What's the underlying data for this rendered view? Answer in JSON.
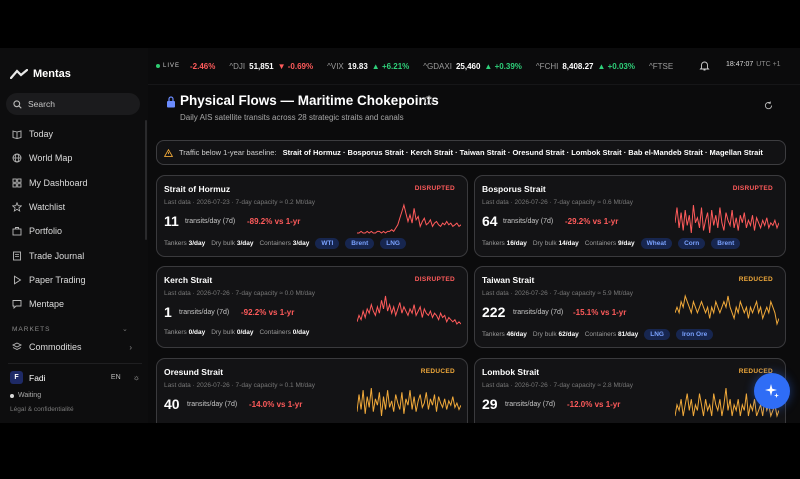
{
  "app": {
    "name": "Mentas"
  },
  "sidebar": {
    "search_label": "Search",
    "nav": [
      {
        "label": "Today",
        "icon": "book-icon"
      },
      {
        "label": "World Map",
        "icon": "globe-icon"
      },
      {
        "label": "My Dashboard",
        "icon": "grid-icon"
      },
      {
        "label": "Watchlist",
        "icon": "star-icon"
      },
      {
        "label": "Portfolio",
        "icon": "briefcase-icon"
      },
      {
        "label": "Trade Journal",
        "icon": "journal-icon"
      },
      {
        "label": "Paper Trading",
        "icon": "play-icon"
      },
      {
        "label": "Mentape",
        "icon": "chat-icon"
      }
    ],
    "section_label": "MARKETS",
    "commodities_label": "Commodities",
    "user": {
      "initial": "F",
      "name": "Fadi",
      "lang": "EN"
    },
    "status": "Waiting",
    "legal": "Légal & confidentialité"
  },
  "ticker": {
    "live_label": "LIVE",
    "first_change": "-2.46%",
    "items": [
      {
        "symbol": "^DJI",
        "value": "51,851",
        "change": "-0.69%",
        "dir": "down"
      },
      {
        "symbol": "^VIX",
        "value": "19.83",
        "change": "+6.21%",
        "dir": "up"
      },
      {
        "symbol": "^GDAXI",
        "value": "25,460",
        "change": "+0.39%",
        "dir": "up"
      },
      {
        "symbol": "^FCHI",
        "value": "8,408.27",
        "change": "+0.03%",
        "dir": "up"
      },
      {
        "symbol": "^FTSE",
        "value": "",
        "change": "",
        "dir": ""
      }
    ],
    "time": "18:47:07",
    "timezone": "UTC +1"
  },
  "header": {
    "title": "Physical Flows — Maritime Chokepoints",
    "subtitle": "Daily AIS satellite transits across 28 strategic straits and canals"
  },
  "alert": {
    "lead": "Traffic below 1-year baseline:",
    "list": "Strait of Hormuz · Bosporus Strait · Kerch Strait · Taiwan Strait · Oresund Strait · Lombok Strait · Bab el-Mandeb Strait · Magellan Strait"
  },
  "labels": {
    "transits_unit": "transits/day (7d)",
    "tankers": "Tankers",
    "dry_bulk": "Dry bulk",
    "containers": "Containers"
  },
  "colors": {
    "disrupted": "#ff5b5b",
    "reduced": "#f0a93a",
    "accent": "#2f6df6"
  },
  "cards": [
    {
      "name": "Strait of Hormuz",
      "status": "DISRUPTED",
      "status_type": "disrupted",
      "meta": "Last data · 2026-07-23 · 7-day capacity ≈ 0.2 Mt/day",
      "transits": "11",
      "delta": "-89.2% vs 1-yr",
      "tankers": "3/day",
      "dry_bulk": "3/day",
      "containers": "3/day",
      "tags": [
        "WTI",
        "Brent",
        "LNG"
      ],
      "spark": [
        5,
        5,
        6,
        5,
        5,
        6,
        5,
        6,
        5,
        5,
        6,
        6,
        5,
        6,
        5,
        6,
        6,
        7,
        6,
        8,
        10,
        14,
        18,
        22,
        17,
        12,
        16,
        11,
        20,
        13,
        15,
        9,
        12,
        14,
        10,
        11,
        13,
        9,
        11,
        12,
        10,
        9,
        11,
        10,
        12,
        10,
        11,
        9,
        10,
        11,
        9,
        10
      ]
    },
    {
      "name": "Bosporus Strait",
      "status": "DISRUPTED",
      "status_type": "disrupted",
      "meta": "Last data · 2026-07-26 · 7-day capacity ≈ 0.6 Mt/day",
      "transits": "64",
      "delta": "-29.2% vs 1-yr",
      "tankers": "16/day",
      "dry_bulk": "14/day",
      "containers": "9/day",
      "tags": [
        "Wheat",
        "Corn",
        "Brent"
      ],
      "spark": [
        12,
        18,
        10,
        16,
        9,
        17,
        11,
        15,
        8,
        19,
        12,
        14,
        10,
        18,
        9,
        13,
        16,
        8,
        17,
        11,
        15,
        10,
        18,
        12,
        9,
        16,
        13,
        11,
        17,
        10,
        14,
        9,
        15,
        12,
        16,
        10,
        13,
        11,
        15,
        9,
        14,
        12,
        10,
        13,
        11,
        14,
        10,
        12,
        11,
        13,
        10,
        12
      ]
    },
    {
      "name": "Kerch Strait",
      "status": "DISRUPTED",
      "status_type": "disrupted",
      "meta": "Last data · 2026-07-26 · 7-day capacity ≈ 0.0 Mt/day",
      "transits": "1",
      "delta": "-92.2% vs 1-yr",
      "tankers": "0/day",
      "dry_bulk": "0/day",
      "containers": "0/day",
      "tags": [],
      "spark": [
        6,
        9,
        7,
        11,
        8,
        12,
        10,
        14,
        11,
        9,
        13,
        10,
        16,
        12,
        18,
        11,
        14,
        10,
        13,
        9,
        12,
        15,
        10,
        13,
        11,
        9,
        12,
        10,
        14,
        9,
        11,
        13,
        8,
        12,
        10,
        9,
        11,
        8,
        10,
        9,
        7,
        10,
        8,
        9,
        6,
        8,
        7,
        6,
        7,
        5,
        6,
        5
      ]
    },
    {
      "name": "Taiwan Strait",
      "status": "REDUCED",
      "status_type": "reduced",
      "meta": "Last data · 2026-07-26 · 7-day capacity ≈ 5.9 Mt/day",
      "transits": "222",
      "delta": "-15.1% vs 1-yr",
      "tankers": "46/day",
      "dry_bulk": "62/day",
      "containers": "81/day",
      "tags": [
        "LNG",
        "Iron Ore"
      ],
      "spark": [
        11,
        12,
        11,
        13,
        12,
        14,
        13,
        12,
        11,
        13,
        12,
        11,
        12,
        13,
        12,
        11,
        12,
        10,
        12,
        11,
        13,
        12,
        11,
        12,
        13,
        12,
        14,
        12,
        11,
        10,
        12,
        11,
        13,
        12,
        11,
        12,
        10,
        12,
        11,
        12,
        13,
        11,
        12,
        10,
        11,
        12,
        11,
        13,
        12,
        11,
        9,
        10
      ]
    },
    {
      "name": "Oresund Strait",
      "status": "REDUCED",
      "status_type": "reduced",
      "meta": "Last data · 2026-07-26 · 7-day capacity ≈ 0.1 Mt/day",
      "transits": "40",
      "delta": "-14.0% vs 1-yr",
      "tankers": "",
      "dry_bulk": "",
      "containers": "",
      "tags": [],
      "spark": [
        8,
        16,
        9,
        18,
        7,
        15,
        10,
        19,
        8,
        14,
        11,
        17,
        6,
        15,
        9,
        18,
        10,
        13,
        8,
        16,
        12,
        9,
        17,
        7,
        14,
        11,
        18,
        9,
        15,
        8,
        13,
        16,
        10,
        12,
        17,
        9,
        14,
        11,
        16,
        8,
        15,
        12,
        10,
        14,
        9,
        13,
        11,
        15,
        10,
        12,
        9,
        11
      ]
    },
    {
      "name": "Lombok Strait",
      "status": "REDUCED",
      "status_type": "reduced",
      "meta": "Last data · 2026-07-26 · 7-day capacity ≈ 2.8 Mt/day",
      "transits": "29",
      "delta": "-12.0% vs 1-yr",
      "tankers": "",
      "dry_bulk": "",
      "containers": "",
      "tags": [],
      "spark": [
        10,
        12,
        11,
        13,
        10,
        12,
        14,
        11,
        13,
        10,
        12,
        11,
        14,
        12,
        10,
        13,
        11,
        12,
        10,
        14,
        12,
        11,
        13,
        10,
        12,
        15,
        11,
        13,
        10,
        12,
        11,
        13,
        10,
        12,
        11,
        14,
        10,
        12,
        11,
        13,
        10,
        11,
        12,
        10,
        13,
        11,
        12,
        10,
        11,
        12,
        10,
        11
      ]
    }
  ]
}
